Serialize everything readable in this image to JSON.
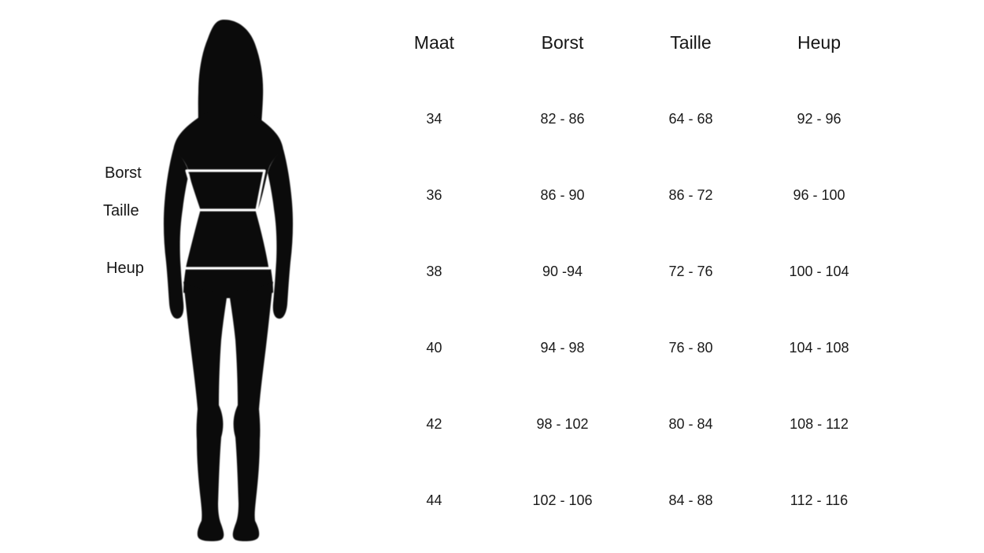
{
  "page": {
    "background": "#ffffff",
    "text_color": "#1a1a1a"
  },
  "figure": {
    "labels": {
      "borst": "Borst",
      "taille": "Taille",
      "heup": "Heup"
    },
    "colors": {
      "silhouette": "#0b0b0b",
      "measure_line": "#ffffff"
    }
  },
  "chart_data": {
    "type": "table",
    "columns": [
      "Maat",
      "Borst",
      "Taille",
      "Heup"
    ],
    "rows": [
      [
        "34",
        "82 - 86",
        "64 - 68",
        "92 - 96"
      ],
      [
        "36",
        "86 - 90",
        "86 - 72",
        "96 - 100"
      ],
      [
        "38",
        "90 -94",
        "72 - 76",
        "100 - 104"
      ],
      [
        "40",
        "94 - 98",
        "76 - 80",
        "104 - 108"
      ],
      [
        "42",
        "98 - 102",
        "80 - 84",
        "108 - 112"
      ],
      [
        "44",
        "102 - 106",
        "84 - 88",
        "112 - 116"
      ]
    ]
  }
}
